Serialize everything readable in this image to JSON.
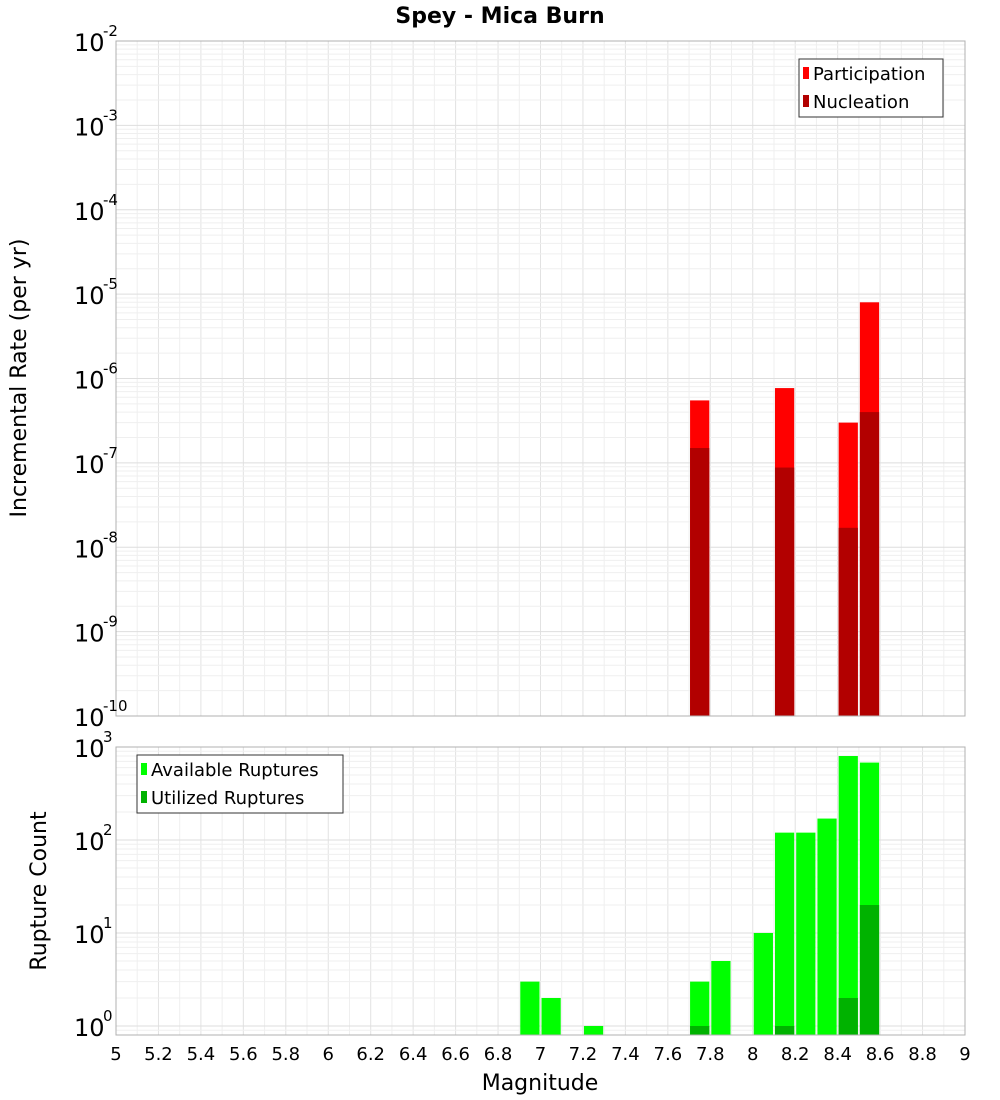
{
  "chart_data": [
    {
      "type": "bar",
      "title": "Spey - Mica Burn",
      "xlabel": "Magnitude",
      "ylabel": "Incremental Rate (per yr)",
      "yscale": "log",
      "xlim": [
        5,
        9
      ],
      "ylim": [
        1e-10,
        0.01
      ],
      "grid": true,
      "legend_position": "top-right",
      "bin_width": 0.1,
      "series": [
        {
          "name": "Participation",
          "color": "#ff0000",
          "x": [
            7.75,
            8.15,
            8.45,
            8.55
          ],
          "values": [
            5.5e-07,
            7.7e-07,
            3e-07,
            8e-06
          ]
        },
        {
          "name": "Nucleation",
          "color": "#b20000",
          "x": [
            7.75,
            8.15,
            8.45,
            8.55
          ],
          "values": [
            1.5e-07,
            8.8e-08,
            1.7e-08,
            4e-07
          ]
        }
      ]
    },
    {
      "type": "bar",
      "xlabel": "Magnitude",
      "ylabel": "Rupture Count",
      "yscale": "log",
      "xlim": [
        5,
        9
      ],
      "ylim": [
        0.8,
        1000
      ],
      "grid": true,
      "legend_position": "top-left",
      "bin_width": 0.1,
      "series": [
        {
          "name": "Available Ruptures",
          "color": "#00ff00",
          "x": [
            6.95,
            7.05,
            7.25,
            7.75,
            7.85,
            8.05,
            8.15,
            8.25,
            8.35,
            8.45,
            8.55
          ],
          "values": [
            3,
            2,
            1,
            3,
            5,
            10,
            120,
            120,
            170,
            800,
            680
          ]
        },
        {
          "name": "Utilized Ruptures",
          "color": "#00b200",
          "x": [
            7.75,
            8.15,
            8.45,
            8.55
          ],
          "values": [
            1,
            1,
            2,
            20
          ]
        }
      ]
    }
  ],
  "x_ticks": [
    "5",
    "5.2",
    "5.4",
    "5.6",
    "5.8",
    "6",
    "6.2",
    "6.4",
    "6.6",
    "6.8",
    "7",
    "7.2",
    "7.4",
    "7.6",
    "7.8",
    "8",
    "8.2",
    "8.4",
    "8.6",
    "8.8",
    "9"
  ],
  "top_y_ticks": [
    {
      "base": "10",
      "exp": "-10",
      "value": 1e-10
    },
    {
      "base": "10",
      "exp": "-9",
      "value": 1e-09
    },
    {
      "base": "10",
      "exp": "-8",
      "value": 1e-08
    },
    {
      "base": "10",
      "exp": "-7",
      "value": 1e-07
    },
    {
      "base": "10",
      "exp": "-6",
      "value": 1e-06
    },
    {
      "base": "10",
      "exp": "-5",
      "value": 1e-05
    },
    {
      "base": "10",
      "exp": "-4",
      "value": 0.0001
    },
    {
      "base": "10",
      "exp": "-3",
      "value": 0.001
    },
    {
      "base": "10",
      "exp": "-2",
      "value": 0.01
    }
  ],
  "bottom_y_ticks": [
    {
      "base": "10",
      "exp": "0",
      "value": 1
    },
    {
      "base": "10",
      "exp": "1",
      "value": 10
    },
    {
      "base": "10",
      "exp": "2",
      "value": 100
    },
    {
      "base": "10",
      "exp": "3",
      "value": 1000
    }
  ]
}
